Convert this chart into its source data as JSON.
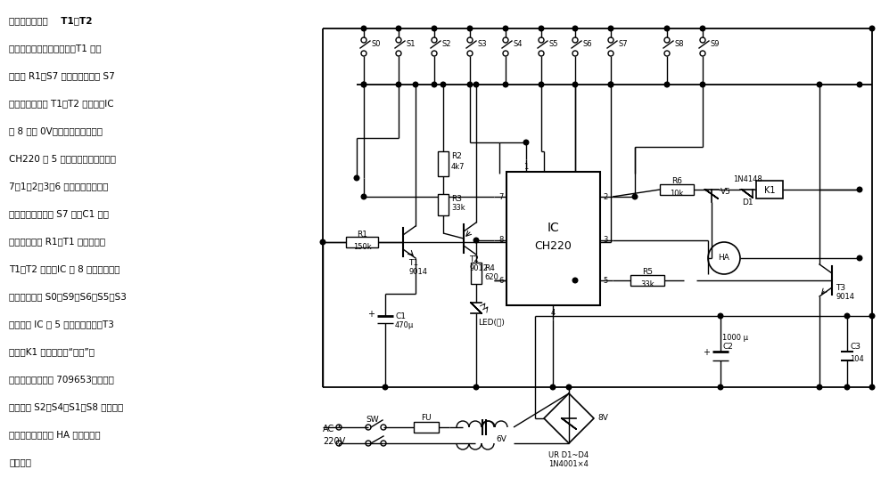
{
  "bg_color": "#ffffff",
  "text_lines": [
    [
      "实用电子密码锁    T1、T2",
      7.5,
      true
    ],
    [
      "构成定时供电开关。平时，T1 的基",
      7.5,
      false
    ],
    [
      "极通过 R1、S7 接至电源。由于 S7",
      7.5,
      false
    ],
    [
      "处于断位，所以 T1、T2 均截止，IC",
      7.5,
      false
    ],
    [
      "的 8 脚为 0V，电路静止不耗电。",
      7.5,
      false
    ],
    [
      "CH220 的 5 脚输出高电平的条件是",
      7.5,
      false
    ],
    [
      "7，1，2，3，6 脚顺次得到瞬时触",
      7.5,
      false
    ],
    [
      "发高电平。当按动 S7 时，C1 立即",
      7.5,
      false
    ],
    [
      "充电，随后经 R1、T1 放电，于是",
      7.5,
      false
    ],
    [
      "T1、T2 导通，IC 的 8 脚得电工作，",
      7.5,
      false
    ],
    [
      "接着依次按动 S0、S9、S6、S5、S3",
      7.5,
      false
    ],
    [
      "键，此时 IC 的 5 脚输出高电平，T3",
      7.5,
      false
    ],
    [
      "导通、K1 吸合，完成“启动”功",
      7.5,
      false
    ],
    [
      "能。此开锁密码为 709653。不知密",
      7.5,
      false
    ],
    [
      "码者触及 S2、S4、S1、S8 键时，触",
      7.5,
      false
    ],
    [
      "发可控硅，讯响器 HA 得电发出报",
      7.5,
      false
    ],
    [
      "警信号。",
      7.5,
      false
    ]
  ]
}
